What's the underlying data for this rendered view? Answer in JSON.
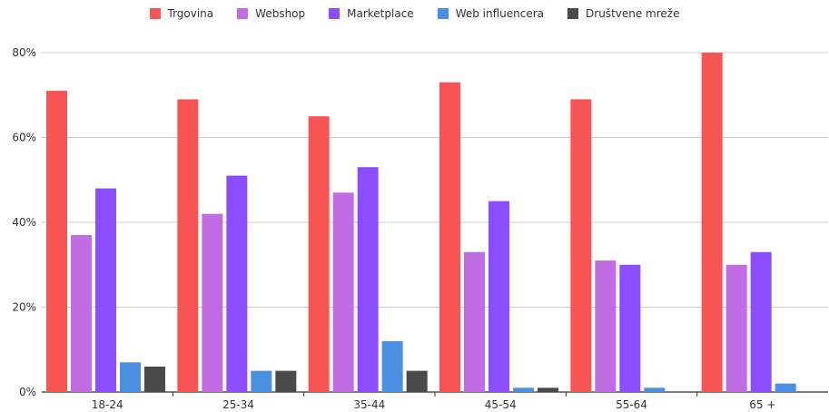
{
  "chart_data": {
    "type": "bar",
    "categories": [
      "18-24",
      "25-34",
      "35-44",
      "45-54",
      "55-64",
      "65 +"
    ],
    "series": [
      {
        "name": "Trgovina",
        "color": "#f85454",
        "values": [
          71,
          69,
          65,
          73,
          69,
          80
        ]
      },
      {
        "name": "Webshop",
        "color": "#c16be4",
        "values": [
          37,
          42,
          47,
          33,
          31,
          30
        ]
      },
      {
        "name": "Marketplace",
        "color": "#8a4dff",
        "values": [
          48,
          51,
          53,
          45,
          30,
          33
        ]
      },
      {
        "name": "Web influencera",
        "color": "#4a90e2",
        "values": [
          7,
          5,
          12,
          1,
          1,
          2
        ]
      },
      {
        "name": "Društvene mreže",
        "color": "#4a4a4a",
        "values": [
          6,
          5,
          5,
          1,
          0,
          0
        ]
      }
    ],
    "yticks": [
      "0%",
      "20%",
      "40%",
      "60%",
      "80%"
    ],
    "ylim": [
      0,
      80
    ],
    "legend_position": "top",
    "grid": true
  }
}
